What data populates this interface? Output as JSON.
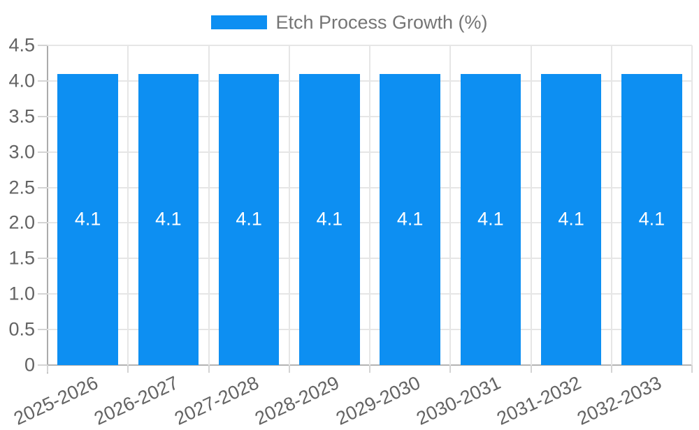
{
  "legend": {
    "label": "Etch Process Growth (%)"
  },
  "chart_data": {
    "type": "bar",
    "title": "Etch Process Growth (%)",
    "categories": [
      "2025-2026",
      "2026-2027",
      "2027-2028",
      "2028-2029",
      "2029-2030",
      "2030-2031",
      "2031-2032",
      "2032-2033"
    ],
    "series": [
      {
        "name": "Etch Process Growth (%)",
        "values": [
          4.1,
          4.1,
          4.1,
          4.1,
          4.1,
          4.1,
          4.1,
          4.1
        ]
      }
    ],
    "bar_labels": [
      "4.1",
      "4.1",
      "4.1",
      "4.1",
      "4.1",
      "4.1",
      "4.1",
      "4.1"
    ],
    "ytick_labels": [
      "0",
      "0.5",
      "1.0",
      "1.5",
      "2.0",
      "2.5",
      "3.0",
      "3.5",
      "4.0",
      "4.5"
    ],
    "xlabel": "",
    "ylabel": "",
    "ylim": [
      0,
      4.5
    ],
    "ytick_step": 0.5,
    "grid": true,
    "legend_position": "top",
    "colors": {
      "bar": "#0d8ff2",
      "grid": "#e6e6e6",
      "axis": "#b0b0b0",
      "tick": "#d4d4d4",
      "tick_text": "#636363",
      "legend_text": "#757575",
      "value_label_text": "#ffffff",
      "background": "#ffffff"
    }
  }
}
